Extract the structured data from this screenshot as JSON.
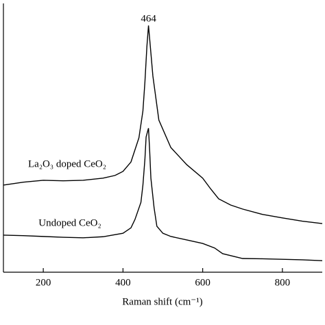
{
  "chart_data": {
    "type": "line",
    "x_label": "Raman shift (cm⁻¹)",
    "xlim": [
      100,
      900
    ],
    "xticks": [
      200,
      400,
      600,
      800
    ],
    "ylim": [
      0,
      100
    ],
    "annotations": [
      {
        "text": "464",
        "x": 464
      }
    ],
    "series": [
      {
        "name": "La₂O₃ doped CeO₂",
        "color": "#000000",
        "x": [
          100,
          150,
          200,
          250,
          300,
          350,
          380,
          400,
          420,
          440,
          450,
          455,
          460,
          464,
          468,
          475,
          490,
          520,
          560,
          600,
          620,
          640,
          670,
          700,
          750,
          800,
          850,
          900
        ],
        "values": [
          32.4,
          33.5,
          34.2,
          34.0,
          34.2,
          35.0,
          36.0,
          37.5,
          41.0,
          50.0,
          60.0,
          70.7,
          84.0,
          91.8,
          85.0,
          73.0,
          56.6,
          46.4,
          40.0,
          35.0,
          31.0,
          27.3,
          25.0,
          23.5,
          21.5,
          20.2,
          19.0,
          18.1
        ]
      },
      {
        "name": "Undoped CeO₂",
        "color": "#000000",
        "x": [
          100,
          150,
          200,
          250,
          300,
          350,
          400,
          420,
          430,
          445,
          450,
          455,
          458,
          461,
          464,
          467,
          470,
          478,
          485,
          500,
          520,
          560,
          600,
          630,
          650,
          700,
          750,
          800,
          850,
          900
        ],
        "values": [
          13.8,
          13.6,
          13.3,
          13.0,
          12.8,
          13.2,
          14.5,
          16.5,
          19.6,
          26.0,
          32.4,
          42.0,
          50.3,
          52.0,
          53.6,
          45.0,
          35.0,
          24.0,
          17.1,
          14.5,
          13.3,
          12.0,
          10.7,
          9.0,
          6.9,
          5.1,
          5.0,
          4.8,
          4.6,
          4.3
        ]
      }
    ]
  }
}
